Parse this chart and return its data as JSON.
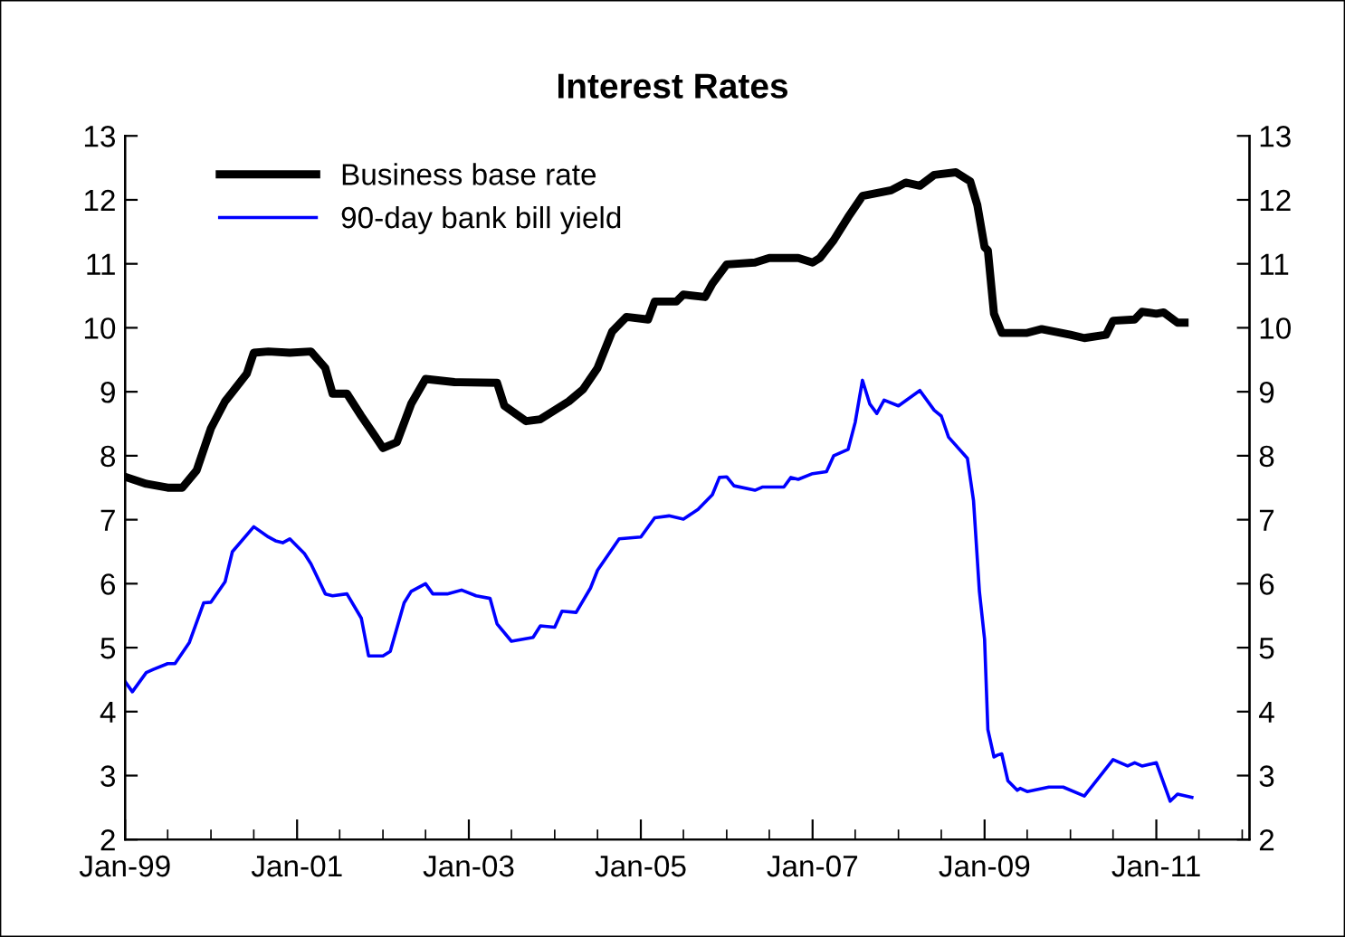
{
  "chart_data": {
    "type": "line",
    "title": "Interest Rates",
    "legend": "top left",
    "grid": false,
    "marker": "none",
    "line_style": "solid",
    "xlim": [
      "1999-01",
      "2012-02"
    ],
    "xticks": [
      {
        "value": "1999-01",
        "label": "Jan-99"
      },
      {
        "value": "1999-07",
        "label": null
      },
      {
        "value": "2000-01",
        "label": null
      },
      {
        "value": "2000-07",
        "label": null
      },
      {
        "value": "2001-01",
        "label": "Jan-01"
      },
      {
        "value": "2001-07",
        "label": null
      },
      {
        "value": "2002-01",
        "label": null
      },
      {
        "value": "2002-07",
        "label": null
      },
      {
        "value": "2003-01",
        "label": "Jan-03"
      },
      {
        "value": "2003-07",
        "label": null
      },
      {
        "value": "2004-01",
        "label": null
      },
      {
        "value": "2004-07",
        "label": null
      },
      {
        "value": "2005-01",
        "label": "Jan-05"
      },
      {
        "value": "2005-07",
        "label": null
      },
      {
        "value": "2006-01",
        "label": null
      },
      {
        "value": "2006-07",
        "label": null
      },
      {
        "value": "2007-01",
        "label": "Jan-07"
      },
      {
        "value": "2007-07",
        "label": null
      },
      {
        "value": "2008-01",
        "label": null
      },
      {
        "value": "2008-07",
        "label": null
      },
      {
        "value": "2009-01",
        "label": "Jan-09"
      },
      {
        "value": "2009-07",
        "label": null
      },
      {
        "value": "2010-01",
        "label": null
      },
      {
        "value": "2010-07",
        "label": null
      },
      {
        "value": "2011-01",
        "label": "Jan-11"
      },
      {
        "value": "2011-07",
        "label": null
      },
      {
        "value": "2012-01",
        "label": null
      }
    ],
    "ylim": [
      2,
      13
    ],
    "yticks": [
      2,
      3,
      4,
      5,
      6,
      7,
      8,
      9,
      10,
      11,
      12,
      13
    ],
    "y2lim": [
      2,
      13
    ],
    "y2ticks": [
      2,
      3,
      4,
      5,
      6,
      7,
      8,
      9,
      10,
      11,
      12,
      13
    ],
    "series": [
      {
        "name": "Business base rate",
        "color": "#000000",
        "x": [
          "1999-01",
          "1999-04",
          "1999-07",
          "1999-09",
          "1999-11",
          "2000-01",
          "2000-03",
          "2000-06",
          "2000-07",
          "2000-09",
          "2000-12",
          "2001-03",
          "2001-05",
          "2001-06",
          "2001-08",
          "2001-10",
          "2001-12",
          "2002-01",
          "2002-03",
          "2002-05",
          "2002-07",
          "2002-11",
          "2003-05",
          "2003-06",
          "2003-09",
          "2003-11",
          "2004-03",
          "2004-05",
          "2004-07",
          "2004-09",
          "2004-11",
          "2005-02",
          "2005-03",
          "2005-06",
          "2005-07",
          "2005-10",
          "2005-11",
          "2006-01",
          "2006-05",
          "2006-07",
          "2006-11",
          "2007-01",
          "2007-02",
          "2007-04",
          "2007-06",
          "2007-08",
          "2007-12",
          "2008-02",
          "2008-04",
          "2008-06",
          "2008-09",
          "2008-11",
          "2008-12",
          "2009-01-01",
          "2009-01-15",
          "2009-02-10",
          "2009-03-15",
          "2009-07",
          "2009-09",
          "2010-01",
          "2010-03",
          "2010-06",
          "2010-07",
          "2010-10",
          "2010-11",
          "2011-01",
          "2011-02",
          "2011-04",
          "2011-05"
        ],
        "values": [
          7.67,
          7.56,
          7.5,
          7.5,
          7.77,
          8.43,
          8.85,
          9.28,
          9.61,
          9.63,
          9.61,
          9.63,
          9.37,
          8.97,
          8.97,
          8.62,
          8.29,
          8.12,
          8.21,
          8.81,
          9.2,
          9.15,
          9.14,
          8.78,
          8.54,
          8.57,
          8.85,
          9.04,
          9.37,
          9.94,
          10.17,
          10.13,
          10.41,
          10.41,
          10.52,
          10.48,
          10.69,
          10.99,
          11.02,
          11.09,
          11.09,
          11.02,
          11.09,
          11.37,
          11.73,
          12.06,
          12.15,
          12.27,
          12.22,
          12.39,
          12.43,
          12.29,
          11.92,
          11.26,
          11.21,
          10.22,
          9.92,
          9.92,
          9.98,
          9.89,
          9.84,
          9.89,
          10.11,
          10.13,
          10.25,
          10.22,
          10.24,
          10.08,
          10.08
        ]
      },
      {
        "name": "90-day bank bill yield",
        "color": "#0000ff",
        "x": [
          "1999-01",
          "1999-02",
          "1999-04",
          "1999-05",
          "1999-07",
          "1999-08",
          "1999-10",
          "1999-12",
          "2000-01",
          "2000-03",
          "2000-04",
          "2000-07",
          "2000-09",
          "2000-10",
          "2000-11",
          "2000-12",
          "2001-02",
          "2001-03",
          "2001-05",
          "2001-06",
          "2001-08",
          "2001-10",
          "2001-11",
          "2002-01",
          "2002-02",
          "2002-04",
          "2002-05",
          "2002-07",
          "2002-08",
          "2002-10",
          "2002-12",
          "2003-02",
          "2003-04",
          "2003-05",
          "2003-07",
          "2003-10",
          "2003-11",
          "2004-01",
          "2004-02",
          "2004-04",
          "2004-06",
          "2004-07",
          "2004-10",
          "2005-01",
          "2005-03",
          "2005-05",
          "2005-07",
          "2005-09",
          "2005-11",
          "2005-12",
          "2006-01",
          "2006-02",
          "2006-05",
          "2006-06",
          "2006-09",
          "2006-10",
          "2006-11",
          "2007-01",
          "2007-03",
          "2007-04",
          "2007-06",
          "2007-07",
          "2007-08",
          "2007-09",
          "2007-10",
          "2007-11",
          "2008-01",
          "2008-04",
          "2008-06",
          "2008-07",
          "2008-08",
          "2008-10-20",
          "2008-11-15",
          "2008-12-10",
          "2009-01-01",
          "2009-01-15",
          "2009-02-10",
          "2009-02-25",
          "2009-03-15",
          "2009-04-10",
          "2009-05-20",
          "2009-06",
          "2009-07",
          "2009-10",
          "2009-12",
          "2010-03",
          "2010-07",
          "2010-09",
          "2010-10",
          "2010-11",
          "2011-01",
          "2011-03",
          "2011-04",
          "2011-06"
        ],
        "values": [
          4.47,
          4.31,
          4.61,
          4.66,
          4.75,
          4.75,
          5.08,
          5.7,
          5.71,
          6.03,
          6.5,
          6.89,
          6.73,
          6.67,
          6.64,
          6.7,
          6.47,
          6.31,
          5.84,
          5.81,
          5.84,
          5.46,
          4.87,
          4.87,
          4.94,
          5.7,
          5.88,
          6.0,
          5.84,
          5.84,
          5.9,
          5.81,
          5.77,
          5.37,
          5.1,
          5.16,
          5.34,
          5.32,
          5.57,
          5.55,
          5.93,
          6.21,
          6.7,
          6.73,
          7.03,
          7.06,
          7.01,
          7.16,
          7.39,
          7.66,
          7.67,
          7.53,
          7.46,
          7.51,
          7.51,
          7.66,
          7.63,
          7.72,
          7.75,
          8.0,
          8.1,
          8.52,
          9.18,
          8.81,
          8.66,
          8.87,
          8.78,
          9.02,
          8.71,
          8.62,
          8.29,
          7.96,
          7.3,
          5.88,
          5.13,
          3.72,
          3.29,
          3.32,
          3.34,
          2.92,
          2.77,
          2.8,
          2.75,
          2.82,
          2.82,
          2.68,
          3.25,
          3.15,
          3.2,
          3.15,
          3.2,
          2.6,
          2.71,
          2.66
        ]
      }
    ]
  }
}
